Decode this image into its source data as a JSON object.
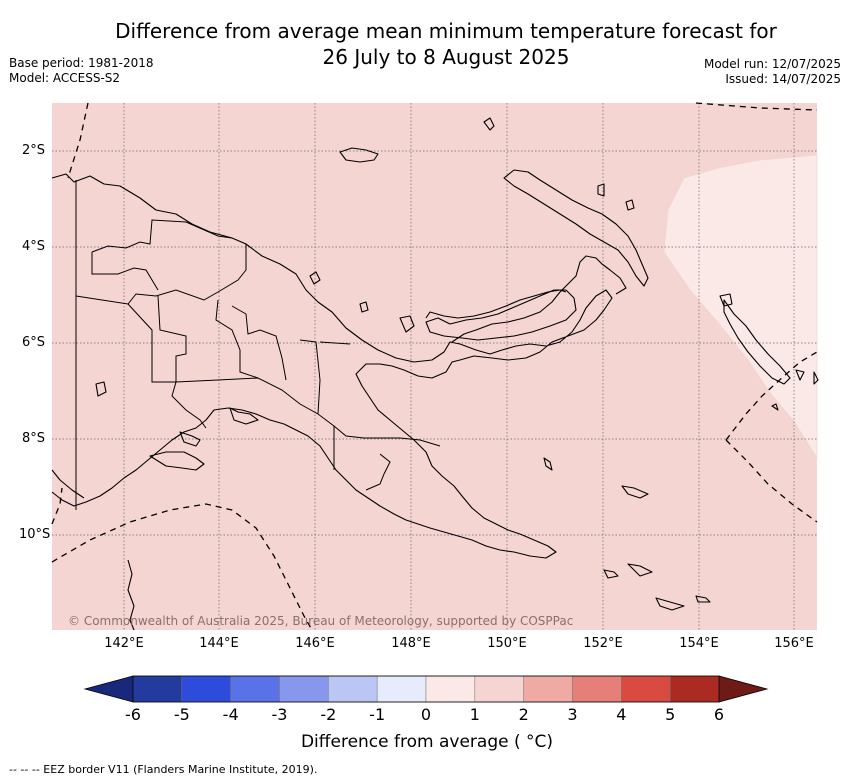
{
  "title": {
    "line1": "Difference from average mean minimum temperature forecast for",
    "line2": "26 July to 8 August 2025"
  },
  "meta": {
    "base_period": "Base period: 1981-2018",
    "model": "Model: ACCESS-S2",
    "model_run": "Model run: 12/07/2025",
    "issued": "Issued: 14/07/2025"
  },
  "map": {
    "lat_ticks": [
      "2°S",
      "4°S",
      "6°S",
      "8°S",
      "10°S"
    ],
    "lon_ticks": [
      "142°E",
      "144°E",
      "146°E",
      "148°E",
      "150°E",
      "152°E",
      "154°E",
      "156°E"
    ],
    "background_color": "#f5d5d2",
    "light_region_color": "#fbe9e7",
    "copyright": "© Commonwealth of Australia 2025, Bureau of Meteorology, supported by COSPPac"
  },
  "colorbar": {
    "label": "Difference from average ( °C)",
    "ticks": [
      "-6",
      "-5",
      "-4",
      "-3",
      "-2",
      "-1",
      "0",
      "1",
      "2",
      "3",
      "4",
      "5",
      "6"
    ],
    "colors": [
      "#233a9e",
      "#2e4cdc",
      "#5a72e8",
      "#8797ee",
      "#bcc6f5",
      "#e6ecfb",
      "#fbe9e7",
      "#f5d5d2",
      "#efaaa3",
      "#e57f77",
      "#d94a40",
      "#ab2a22"
    ],
    "under_color": "#19287a",
    "over_color": "#6e1a17"
  },
  "footnote": "--  --  -- EEZ border V11 (Flanders Marine Institute, 2019)."
}
